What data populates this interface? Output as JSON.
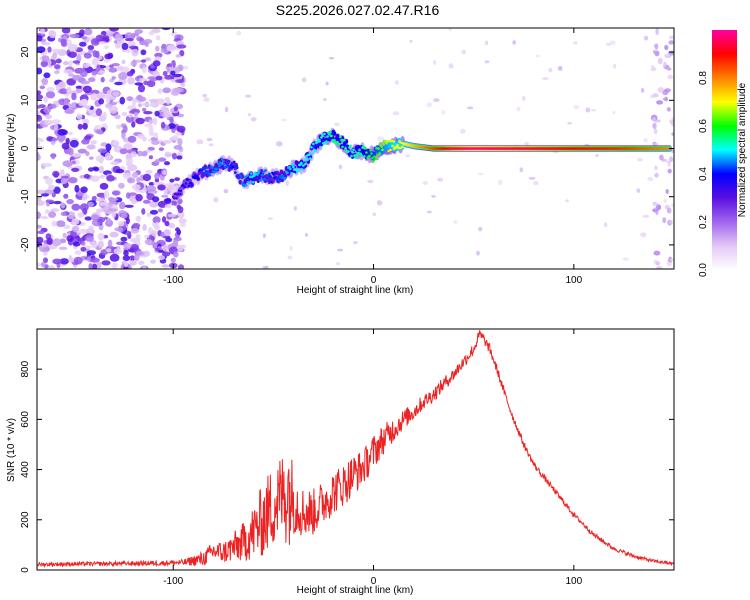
{
  "title": "S225.2026.027.02.47.R16",
  "chart_data": [
    {
      "type": "heatmap",
      "title": "S225.2026.027.02.47.R16",
      "xlabel": "Height of straight line (km)",
      "ylabel": "Frequency (Hz)",
      "xlim": [
        -168,
        150
      ],
      "ylim": [
        -25,
        25
      ],
      "xticks": [
        -100,
        0,
        100
      ],
      "yticks": [
        -20,
        -10,
        0,
        10,
        20
      ],
      "colorbar": {
        "label": "Normalized spectral amplitude",
        "range": [
          0,
          1
        ],
        "ticks": [
          "0.0",
          "0.2",
          "0.4",
          "0.6",
          "0.8"
        ],
        "colors": [
          "#ffffff",
          "#e3c8f5",
          "#a066ee",
          "#5a10e0",
          "#0000ff",
          "#00ffff",
          "#00ff00",
          "#ffff00",
          "#ff8000",
          "#ff0000",
          "#ff00a0"
        ]
      },
      "noise_region_x": [
        -168,
        -95
      ],
      "signal_track": {
        "x": [
          -100,
          -95,
          -90,
          -85,
          -80,
          -75,
          -70,
          -65,
          -60,
          -55,
          -50,
          -45,
          -40,
          -35,
          -30,
          -25,
          -20,
          -15,
          -10,
          -5,
          0,
          5,
          10,
          15,
          20,
          30,
          40,
          50,
          60,
          80,
          100,
          120,
          140,
          148
        ],
        "freq": [
          -11,
          -8,
          -6.5,
          -5,
          -4.5,
          -3,
          -3.5,
          -7,
          -6,
          -5.5,
          -6,
          -5.5,
          -4,
          -3.5,
          0,
          2,
          2.5,
          1,
          -1,
          -0.5,
          -1.5,
          0.5,
          0.5,
          1,
          0.5,
          0,
          0,
          0,
          0,
          0,
          0,
          0,
          0,
          0
        ],
        "amplitude": [
          0.3,
          0.35,
          0.38,
          0.42,
          0.45,
          0.45,
          0.4,
          0.45,
          0.5,
          0.45,
          0.4,
          0.45,
          0.5,
          0.5,
          0.5,
          0.52,
          0.55,
          0.55,
          0.52,
          0.55,
          0.6,
          0.65,
          0.7,
          0.7,
          0.75,
          0.85,
          0.95,
          1.0,
          0.98,
          0.95,
          0.9,
          0.88,
          0.82,
          0.8
        ]
      }
    },
    {
      "type": "line",
      "xlabel": "Height of straight line (km)",
      "ylabel": "SNR (10 * v/v)",
      "xlim": [
        -168,
        150
      ],
      "ylim": [
        0,
        960
      ],
      "xticks": [
        -100,
        0,
        100
      ],
      "yticks": [
        0,
        200,
        400,
        600,
        800
      ],
      "color": "#ee2222",
      "series": [
        {
          "name": "SNR",
          "x": [
            -168,
            -150,
            -130,
            -110,
            -95,
            -85,
            -80,
            -75,
            -70,
            -65,
            -60,
            -55,
            -50,
            -45,
            -43,
            -40,
            -35,
            -30,
            -25,
            -20,
            -15,
            -10,
            -5,
            0,
            5,
            10,
            15,
            20,
            25,
            30,
            35,
            40,
            45,
            50,
            53,
            55,
            58,
            62,
            66,
            70,
            75,
            80,
            85,
            90,
            95,
            100,
            110,
            120,
            130,
            140,
            150
          ],
          "y": [
            22,
            24,
            25,
            27,
            30,
            45,
            75,
            70,
            90,
            110,
            150,
            200,
            260,
            300,
            330,
            280,
            230,
            230,
            270,
            310,
            340,
            380,
            410,
            470,
            520,
            560,
            600,
            630,
            670,
            700,
            740,
            780,
            830,
            880,
            940,
            920,
            880,
            790,
            690,
            600,
            500,
            420,
            370,
            320,
            270,
            220,
            140,
            85,
            55,
            35,
            25
          ],
          "noise": [
            8,
            8,
            8,
            10,
            12,
            30,
            40,
            45,
            60,
            80,
            110,
            150,
            170,
            180,
            250,
            140,
            100,
            95,
            90,
            90,
            85,
            85,
            70,
            70,
            60,
            50,
            40,
            35,
            30,
            30,
            28,
            25,
            25,
            25,
            20,
            20,
            20,
            18,
            16,
            15,
            14,
            12,
            12,
            12,
            10,
            10,
            9,
            8,
            8,
            6,
            6
          ]
        }
      ]
    }
  ]
}
